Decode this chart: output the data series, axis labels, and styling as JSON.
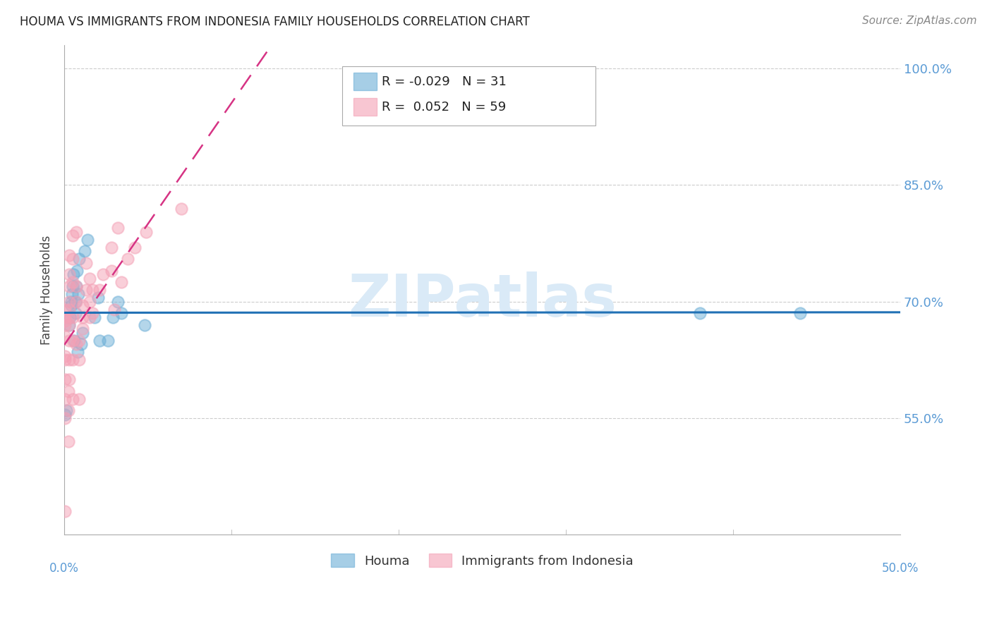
{
  "title": "HOUMA VS IMMIGRANTS FROM INDONESIA FAMILY HOUSEHOLDS CORRELATION CHART",
  "source": "Source: ZipAtlas.com",
  "ylabel": "Family Households",
  "yticks": [
    55.0,
    70.0,
    85.0,
    100.0
  ],
  "ytick_labels": [
    "55.0%",
    "70.0%",
    "85.0%",
    "100.0%"
  ],
  "xmin": 0.0,
  "xmax": 50.0,
  "ymin": 40.0,
  "ymax": 103.0,
  "houma_color": "#6baed6",
  "indonesia_color": "#f4a0b5",
  "houma_line_color": "#2171b5",
  "indonesia_line_color": "#d63384",
  "houma_R": -0.029,
  "houma_N": 31,
  "indonesia_R": 0.052,
  "indonesia_N": 59,
  "houma_x": [
    0.05,
    0.1,
    0.3,
    0.35,
    0.4,
    0.4,
    0.45,
    0.5,
    0.55,
    0.6,
    0.65,
    0.65,
    0.7,
    0.75,
    0.8,
    0.85,
    0.9,
    1.0,
    1.1,
    1.2,
    1.4,
    1.8,
    2.0,
    2.1,
    2.6,
    2.9,
    3.2,
    3.4,
    4.8,
    38.0,
    44.0
  ],
  "houma_y": [
    55.5,
    56.0,
    67.0,
    68.0,
    69.5,
    70.0,
    71.0,
    72.0,
    73.5,
    65.0,
    68.5,
    70.0,
    72.0,
    74.0,
    63.5,
    71.0,
    75.5,
    64.5,
    66.0,
    76.5,
    78.0,
    68.0,
    70.5,
    65.0,
    65.0,
    68.0,
    70.0,
    68.5,
    67.0,
    68.5,
    68.5
  ],
  "indonesia_x": [
    0.05,
    0.05,
    0.05,
    0.05,
    0.05,
    0.05,
    0.05,
    0.05,
    0.05,
    0.05,
    0.05,
    0.25,
    0.25,
    0.25,
    0.3,
    0.3,
    0.3,
    0.3,
    0.3,
    0.3,
    0.3,
    0.3,
    0.3,
    0.3,
    0.5,
    0.5,
    0.5,
    0.5,
    0.5,
    0.5,
    0.5,
    0.7,
    0.7,
    0.7,
    0.7,
    0.9,
    0.9,
    0.9,
    1.1,
    1.1,
    1.1,
    1.3,
    1.3,
    1.5,
    1.5,
    1.5,
    1.7,
    1.7,
    2.1,
    2.3,
    2.8,
    2.8,
    3.0,
    3.2,
    3.4,
    3.8,
    4.2,
    4.9,
    7.0
  ],
  "indonesia_y": [
    43.0,
    55.0,
    57.5,
    60.0,
    62.5,
    63.0,
    65.5,
    67.0,
    67.5,
    68.0,
    69.0,
    52.0,
    56.0,
    58.5,
    60.0,
    62.5,
    65.0,
    67.0,
    68.0,
    69.0,
    70.0,
    72.0,
    73.5,
    76.0,
    57.5,
    62.5,
    65.0,
    68.0,
    72.5,
    75.5,
    78.5,
    64.5,
    70.0,
    72.0,
    79.0,
    57.5,
    62.5,
    65.0,
    66.5,
    68.0,
    69.5,
    71.5,
    75.0,
    68.0,
    70.0,
    73.0,
    68.5,
    71.5,
    71.5,
    73.5,
    74.0,
    77.0,
    69.0,
    79.5,
    72.5,
    75.5,
    77.0,
    79.0,
    82.0
  ],
  "background_color": "#ffffff",
  "grid_color": "#cccccc",
  "title_color": "#222222",
  "axis_color": "#5b9bd5",
  "watermark_text": "ZIPatlas",
  "watermark_color": "#daeaf7",
  "watermark_fontsize": 60
}
